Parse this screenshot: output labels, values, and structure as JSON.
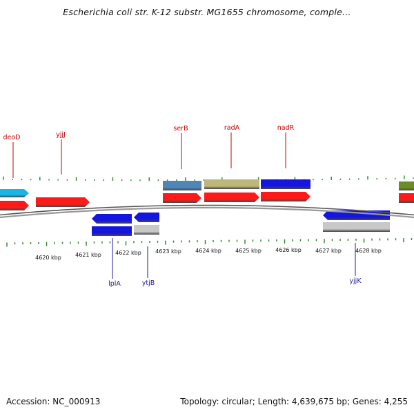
{
  "title": "Escherichia coli str. K-12 substr. MG1655 chromosome, comple…",
  "footer": {
    "accession": "Accession: NC_000913",
    "stats": "Topology: circular; Length: 4,639,675 bp; Genes: 4,255"
  },
  "axis": {
    "unit": "kbp",
    "tick_labels": [
      "4620 kbp",
      "4621 kbp",
      "4622 kbp",
      "4623 kbp",
      "4624 kbp",
      "4625 kbp",
      "4626 kbp",
      "4627 kbp",
      "4628 kbp"
    ]
  },
  "colors": {
    "backbone": "#888888",
    "tick": "#2e8b2e",
    "top_label": "#cc0000",
    "bottom_label": "#1a1aa6",
    "cds": "#ff1a1a",
    "gene_blue": "#1515e0",
    "gene_steelblue": "#4f86b8",
    "gene_khaki": "#bdb77a",
    "gene_cyan": "#19b5e6",
    "gene_olive": "#6b8e23",
    "gene_gray": "#c8c8c8"
  },
  "genes_top_labels": [
    "deoD",
    "yjjJ",
    "serB",
    "radA",
    "nadR"
  ],
  "genes_bottom_labels": [
    "lplA",
    "ytjB",
    "yjjK"
  ]
}
